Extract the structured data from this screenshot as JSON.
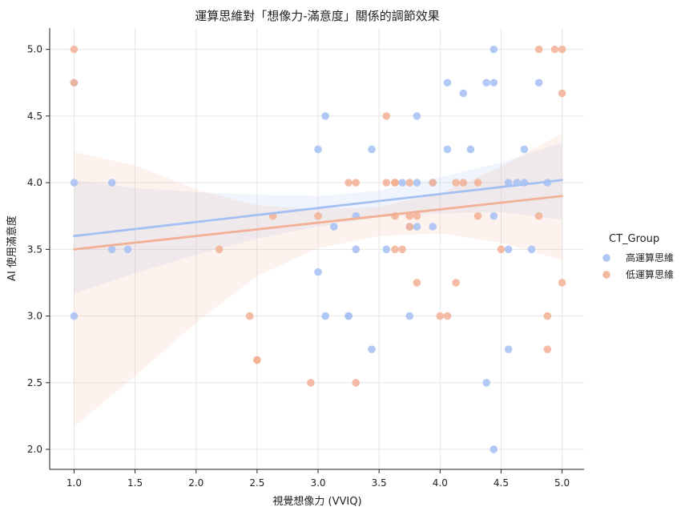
{
  "chart_data": {
    "type": "scatter",
    "title": "運算思維對「想像力-滿意度」關係的調節效果",
    "xlabel": "視覺想像力 (VVIQ)",
    "ylabel": "AI 使用滿意度",
    "xlim": [
      0.8,
      5.18
    ],
    "ylim": [
      1.85,
      5.16
    ],
    "xticks": [
      "1.0",
      "1.5",
      "2.0",
      "2.5",
      "3.0",
      "3.5",
      "4.0",
      "4.5",
      "5.0"
    ],
    "yticks": [
      "2.0",
      "2.5",
      "3.0",
      "3.5",
      "4.0",
      "4.5",
      "5.0"
    ],
    "grid": true,
    "legend": {
      "title": "CT_Group",
      "placement": "right"
    },
    "series": [
      {
        "name": "高運算思維",
        "color": "#a5c0f3",
        "points": [
          [
            1.0,
            4.75
          ],
          [
            1.0,
            4.0
          ],
          [
            1.0,
            3.0
          ],
          [
            1.31,
            4.0
          ],
          [
            1.31,
            3.5
          ],
          [
            1.44,
            3.5
          ],
          [
            3.0,
            4.25
          ],
          [
            3.0,
            3.33
          ],
          [
            3.06,
            4.5
          ],
          [
            3.06,
            3.0
          ],
          [
            3.13,
            3.67
          ],
          [
            3.25,
            3.0
          ],
          [
            3.25,
            3.0
          ],
          [
            3.31,
            3.75
          ],
          [
            3.31,
            3.5
          ],
          [
            3.44,
            4.25
          ],
          [
            3.44,
            2.75
          ],
          [
            3.56,
            3.5
          ],
          [
            3.69,
            4.0
          ],
          [
            3.75,
            3.67
          ],
          [
            3.75,
            3.0
          ],
          [
            3.81,
            4.5
          ],
          [
            3.81,
            4.0
          ],
          [
            3.81,
            3.67
          ],
          [
            3.94,
            4.0
          ],
          [
            3.94,
            3.67
          ],
          [
            4.06,
            4.75
          ],
          [
            4.06,
            4.25
          ],
          [
            4.19,
            4.67
          ],
          [
            4.25,
            4.25
          ],
          [
            4.38,
            4.75
          ],
          [
            4.38,
            2.5
          ],
          [
            4.44,
            5.0
          ],
          [
            4.44,
            4.75
          ],
          [
            4.44,
            3.75
          ],
          [
            4.44,
            2.0
          ],
          [
            4.56,
            4.0
          ],
          [
            4.56,
            3.5
          ],
          [
            4.56,
            2.75
          ],
          [
            4.63,
            4.0
          ],
          [
            4.69,
            4.25
          ],
          [
            4.69,
            4.0
          ],
          [
            4.75,
            3.5
          ],
          [
            4.81,
            4.75
          ],
          [
            4.88,
            4.0
          ]
        ],
        "fit": {
          "x": [
            1.0,
            5.0
          ],
          "y": [
            3.6,
            4.02
          ]
        },
        "ci": {
          "x": [
            1.0,
            1.5,
            2.0,
            2.5,
            3.0,
            3.5,
            4.0,
            4.5,
            5.0
          ],
          "lower": [
            3.17,
            3.32,
            3.46,
            3.58,
            3.67,
            3.74,
            3.77,
            3.78,
            3.72
          ],
          "upper": [
            4.02,
            3.96,
            3.93,
            3.91,
            3.9,
            3.94,
            4.04,
            4.15,
            4.3
          ]
        }
      },
      {
        "name": "低運算思維",
        "color": "#f2b094",
        "points": [
          [
            1.0,
            5.0
          ],
          [
            1.0,
            4.75
          ],
          [
            2.19,
            3.5
          ],
          [
            2.44,
            3.0
          ],
          [
            2.5,
            2.67
          ],
          [
            2.5,
            2.67
          ],
          [
            2.63,
            3.75
          ],
          [
            2.94,
            2.5
          ],
          [
            3.0,
            3.75
          ],
          [
            3.25,
            4.0
          ],
          [
            3.31,
            4.0
          ],
          [
            3.31,
            2.5
          ],
          [
            3.56,
            4.5
          ],
          [
            3.56,
            4.0
          ],
          [
            3.63,
            4.0
          ],
          [
            3.63,
            4.0
          ],
          [
            3.63,
            3.75
          ],
          [
            3.63,
            3.5
          ],
          [
            3.69,
            3.5
          ],
          [
            3.75,
            4.0
          ],
          [
            3.75,
            3.75
          ],
          [
            3.75,
            3.67
          ],
          [
            3.81,
            3.75
          ],
          [
            3.81,
            3.25
          ],
          [
            3.94,
            4.0
          ],
          [
            4.0,
            3.0
          ],
          [
            4.06,
            3.0
          ],
          [
            4.13,
            4.0
          ],
          [
            4.13,
            3.25
          ],
          [
            4.19,
            4.0
          ],
          [
            4.31,
            4.0
          ],
          [
            4.31,
            3.75
          ],
          [
            4.5,
            3.5
          ],
          [
            4.81,
            5.0
          ],
          [
            4.81,
            3.75
          ],
          [
            4.88,
            3.0
          ],
          [
            4.88,
            2.75
          ],
          [
            4.94,
            5.0
          ],
          [
            5.0,
            5.0
          ],
          [
            5.0,
            4.67
          ],
          [
            5.0,
            3.25
          ]
        ],
        "fit": {
          "x": [
            1.0,
            5.0
          ],
          "y": [
            3.5,
            3.9
          ]
        },
        "ci": {
          "x": [
            1.0,
            1.5,
            2.0,
            2.5,
            3.0,
            3.5,
            4.0,
            4.5,
            5.0
          ],
          "lower": [
            2.17,
            2.55,
            2.95,
            3.3,
            3.51,
            3.6,
            3.62,
            3.55,
            3.42
          ],
          "upper": [
            4.23,
            4.13,
            3.95,
            3.83,
            3.8,
            3.82,
            3.92,
            4.12,
            4.37
          ]
        }
      }
    ]
  }
}
